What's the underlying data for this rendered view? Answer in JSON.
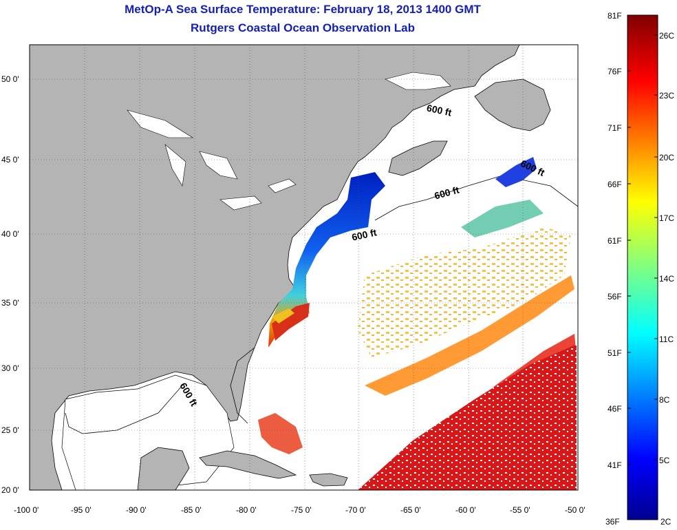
{
  "title": "MetOp-A Sea Surface Temperature:  February 18, 2013 1400 GMT",
  "subtitle": "Rutgers Coastal Ocean Observation Lab",
  "map": {
    "lon_ticks": [
      "-100 0'",
      "-95 0'",
      "-90 0'",
      "-85 0'",
      "-80 0'",
      "-75 0'",
      "-70 0'",
      "-65 0'",
      "-60 0'",
      "-55 0'",
      "-50 0'"
    ],
    "lat_ticks": [
      "50 0'",
      "45 0'",
      "40 0'",
      "35 0'",
      "30 0'",
      "25 0'",
      "20 0'"
    ],
    "contour_labels": [
      "600 ft",
      "600 ft",
      "600 ft",
      "600 ft",
      "600 ft"
    ],
    "land_color": "#b4b4b4",
    "ocean_color": "#ffffff"
  },
  "colorbar": {
    "fahrenheit": [
      "81F",
      "76F",
      "71F",
      "66F",
      "61F",
      "56F",
      "51F",
      "46F",
      "41F",
      "36F"
    ],
    "celsius": [
      "26C",
      "23C",
      "20C",
      "17C",
      "14C",
      "11C",
      "8C",
      "5C",
      "2C"
    ]
  }
}
